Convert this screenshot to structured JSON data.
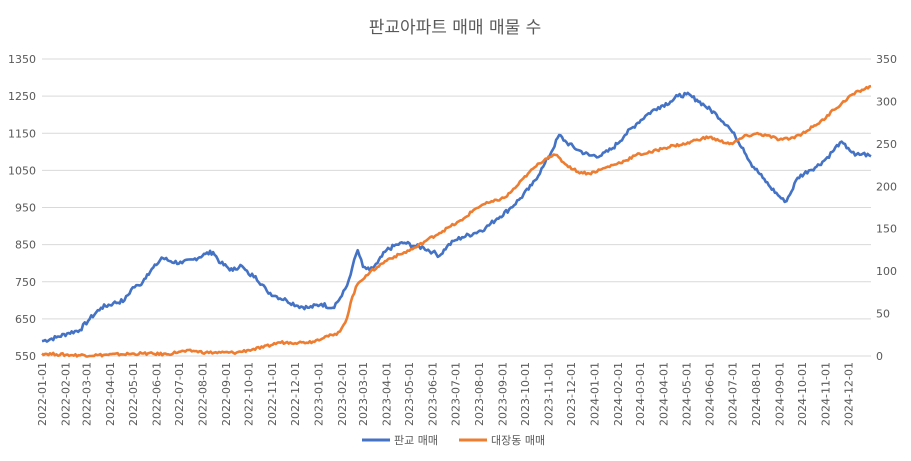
{
  "chart_data": {
    "type": "line",
    "title": "판교아파트 매매 매물 수",
    "y_left": {
      "min": 550,
      "max": 1350,
      "ticks": [
        550,
        650,
        750,
        850,
        950,
        1050,
        1150,
        1250,
        1350
      ]
    },
    "y_right": {
      "min": 0,
      "max": 350,
      "ticks": [
        0,
        50,
        100,
        150,
        200,
        250,
        300,
        350
      ]
    },
    "x_start": "2022-01-01",
    "x_end": "2024-12-31",
    "x_tick_labels": [
      "2022-01-01",
      "2022-02-01",
      "2022-03-01",
      "2022-04-01",
      "2022-05-01",
      "2022-06-01",
      "2022-07-01",
      "2022-08-01",
      "2022-09-01",
      "2022-10-01",
      "2022-11-01",
      "2022-12-01",
      "2023-01-01",
      "2023-02-01",
      "2023-03-01",
      "2023-04-01",
      "2023-05-01",
      "2023-06-01",
      "2023-07-01",
      "2023-08-01",
      "2023-09-01",
      "2023-10-01",
      "2023-11-01",
      "2023-12-01",
      "2024-01-01",
      "2024-02-01",
      "2024-03-01",
      "2024-04-01",
      "2024-05-01",
      "2024-06-01",
      "2024-07-01",
      "2024-08-01",
      "2024-09-01",
      "2024-10-01",
      "2024-11-01",
      "2024-12-01"
    ],
    "series": [
      {
        "name": "판교 매매",
        "axis": "left",
        "color": "#4472c4",
        "points": [
          [
            "2022-01-01",
            590
          ],
          [
            "2022-01-20",
            600
          ],
          [
            "2022-02-05",
            612
          ],
          [
            "2022-02-20",
            620
          ],
          [
            "2022-03-05",
            650
          ],
          [
            "2022-03-20",
            680
          ],
          [
            "2022-04-05",
            692
          ],
          [
            "2022-04-20",
            700
          ],
          [
            "2022-05-01",
            735
          ],
          [
            "2022-05-10",
            740
          ],
          [
            "2022-05-20",
            770
          ],
          [
            "2022-06-01",
            795
          ],
          [
            "2022-06-08",
            815
          ],
          [
            "2022-06-20",
            805
          ],
          [
            "2022-07-05",
            800
          ],
          [
            "2022-07-20",
            810
          ],
          [
            "2022-08-05",
            825
          ],
          [
            "2022-08-15",
            830
          ],
          [
            "2022-08-25",
            800
          ],
          [
            "2022-09-10",
            780
          ],
          [
            "2022-09-20",
            795
          ],
          [
            "2022-10-01",
            770
          ],
          [
            "2022-10-10",
            765
          ],
          [
            "2022-10-25",
            725
          ],
          [
            "2022-11-05",
            712
          ],
          [
            "2022-11-20",
            700
          ],
          [
            "2022-12-05",
            685
          ],
          [
            "2022-12-20",
            680
          ],
          [
            "2023-01-05",
            690
          ],
          [
            "2023-01-20",
            680
          ],
          [
            "2023-02-01",
            712
          ],
          [
            "2023-02-08",
            740
          ],
          [
            "2023-02-15",
            790
          ],
          [
            "2023-02-22",
            835
          ],
          [
            "2023-03-01",
            790
          ],
          [
            "2023-03-10",
            780
          ],
          [
            "2023-03-20",
            800
          ],
          [
            "2023-04-01",
            835
          ],
          [
            "2023-04-15",
            850
          ],
          [
            "2023-04-25",
            855
          ],
          [
            "2023-05-10",
            845
          ],
          [
            "2023-05-20",
            842
          ],
          [
            "2023-06-01",
            830
          ],
          [
            "2023-06-10",
            820
          ],
          [
            "2023-06-20",
            845
          ],
          [
            "2023-07-01",
            862
          ],
          [
            "2023-07-10",
            870
          ],
          [
            "2023-07-25",
            880
          ],
          [
            "2023-08-10",
            895
          ],
          [
            "2023-08-25",
            920
          ],
          [
            "2023-09-10",
            945
          ],
          [
            "2023-09-25",
            975
          ],
          [
            "2023-10-10",
            1010
          ],
          [
            "2023-10-25",
            1060
          ],
          [
            "2023-11-05",
            1100
          ],
          [
            "2023-11-15",
            1145
          ],
          [
            "2023-11-25",
            1125
          ],
          [
            "2023-12-10",
            1105
          ],
          [
            "2023-12-25",
            1090
          ],
          [
            "2024-01-10",
            1090
          ],
          [
            "2024-01-25",
            1110
          ],
          [
            "2024-02-10",
            1145
          ],
          [
            "2024-02-25",
            1175
          ],
          [
            "2024-03-10",
            1200
          ],
          [
            "2024-03-25",
            1220
          ],
          [
            "2024-04-10",
            1235
          ],
          [
            "2024-04-20",
            1250
          ],
          [
            "2024-05-01",
            1255
          ],
          [
            "2024-05-15",
            1240
          ],
          [
            "2024-05-25",
            1225
          ],
          [
            "2024-06-10",
            1200
          ],
          [
            "2024-06-25",
            1170
          ],
          [
            "2024-07-05",
            1140
          ],
          [
            "2024-07-15",
            1110
          ],
          [
            "2024-07-25",
            1070
          ],
          [
            "2024-08-10",
            1030
          ],
          [
            "2024-08-20",
            1005
          ],
          [
            "2024-09-01",
            980
          ],
          [
            "2024-09-08",
            965
          ],
          [
            "2024-09-15",
            985
          ],
          [
            "2024-09-25",
            1030
          ],
          [
            "2024-10-10",
            1050
          ],
          [
            "2024-10-20",
            1060
          ],
          [
            "2024-11-01",
            1080
          ],
          [
            "2024-11-10",
            1100
          ],
          [
            "2024-11-20",
            1125
          ],
          [
            "2024-12-01",
            1110
          ],
          [
            "2024-12-10",
            1090
          ],
          [
            "2024-12-20",
            1095
          ],
          [
            "2024-12-31",
            1088
          ]
        ]
      },
      {
        "name": "대장동 매매",
        "axis": "right",
        "color": "#ed7d31",
        "points": [
          [
            "2022-01-01",
            3
          ],
          [
            "2022-01-20",
            2
          ],
          [
            "2022-02-10",
            1
          ],
          [
            "2022-03-15",
            1
          ],
          [
            "2022-04-15",
            2
          ],
          [
            "2022-05-15",
            3
          ],
          [
            "2022-06-15",
            2
          ],
          [
            "2022-07-01",
            5
          ],
          [
            "2022-07-20",
            6
          ],
          [
            "2022-08-05",
            4
          ],
          [
            "2022-08-25",
            4
          ],
          [
            "2022-09-15",
            4
          ],
          [
            "2022-10-01",
            7
          ],
          [
            "2022-10-20",
            10
          ],
          [
            "2022-11-10",
            16
          ],
          [
            "2022-11-25",
            16
          ],
          [
            "2022-12-10",
            16
          ],
          [
            "2022-12-25",
            17
          ],
          [
            "2023-01-10",
            23
          ],
          [
            "2023-01-25",
            25
          ],
          [
            "2023-02-01",
            33
          ],
          [
            "2023-02-08",
            45
          ],
          [
            "2023-02-15",
            70
          ],
          [
            "2023-02-22",
            85
          ],
          [
            "2023-03-05",
            95
          ],
          [
            "2023-03-20",
            105
          ],
          [
            "2023-04-05",
            115
          ],
          [
            "2023-04-20",
            120
          ],
          [
            "2023-05-10",
            128
          ],
          [
            "2023-05-25",
            137
          ],
          [
            "2023-06-10",
            145
          ],
          [
            "2023-06-25",
            153
          ],
          [
            "2023-07-10",
            160
          ],
          [
            "2023-07-25",
            172
          ],
          [
            "2023-08-05",
            178
          ],
          [
            "2023-08-20",
            182
          ],
          [
            "2023-09-05",
            187
          ],
          [
            "2023-09-20",
            200
          ],
          [
            "2023-10-05",
            215
          ],
          [
            "2023-10-20",
            227
          ],
          [
            "2023-11-01",
            235
          ],
          [
            "2023-11-10",
            237
          ],
          [
            "2023-11-25",
            225
          ],
          [
            "2023-12-10",
            217
          ],
          [
            "2023-12-25",
            215
          ],
          [
            "2024-01-10",
            220
          ],
          [
            "2024-01-25",
            225
          ],
          [
            "2024-02-10",
            230
          ],
          [
            "2024-02-25",
            237
          ],
          [
            "2024-03-15",
            240
          ],
          [
            "2024-04-01",
            245
          ],
          [
            "2024-04-15",
            248
          ],
          [
            "2024-05-01",
            250
          ],
          [
            "2024-05-15",
            255
          ],
          [
            "2024-06-01",
            258
          ],
          [
            "2024-06-15",
            253
          ],
          [
            "2024-07-01",
            250
          ],
          [
            "2024-07-15",
            258
          ],
          [
            "2024-08-01",
            262
          ],
          [
            "2024-08-15",
            260
          ],
          [
            "2024-09-01",
            255
          ],
          [
            "2024-09-15",
            256
          ],
          [
            "2024-10-01",
            262
          ],
          [
            "2024-10-15",
            270
          ],
          [
            "2024-11-01",
            280
          ],
          [
            "2024-11-10",
            290
          ],
          [
            "2024-11-20",
            295
          ],
          [
            "2024-12-01",
            305
          ],
          [
            "2024-12-15",
            312
          ],
          [
            "2024-12-31",
            318
          ]
        ]
      }
    ],
    "legend_position": "bottom",
    "grid": true
  }
}
